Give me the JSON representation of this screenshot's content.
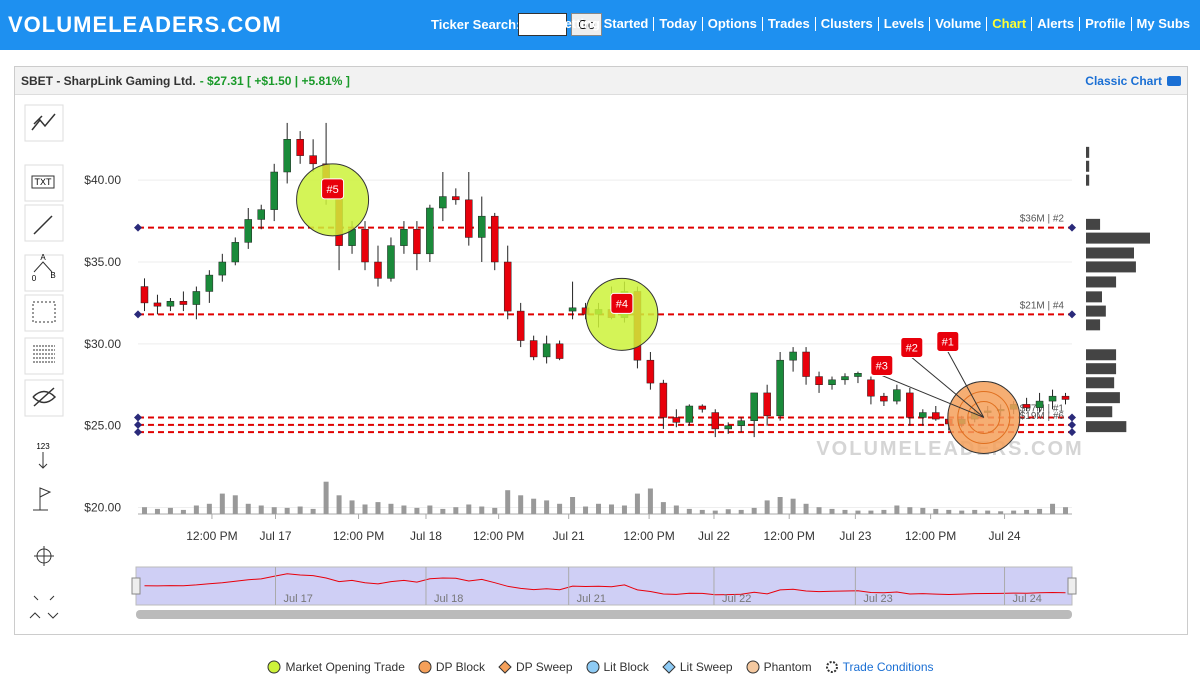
{
  "header": {
    "logo": "VOLUMELEADERS.COM",
    "search_label": "Ticker Search:",
    "go": "Go",
    "nav": [
      "Getting Started",
      "Today",
      "Options",
      "Trades",
      "Clusters",
      "Levels",
      "Volume",
      "Chart",
      "Alerts",
      "Profile",
      "My Subs"
    ],
    "active": "Chart"
  },
  "panel": {
    "title": "SBET - SharpLink Gaming Ltd.",
    "quote": "- $27.31 [ +$1.50 | +5.81% ]",
    "classic": "Classic Chart"
  },
  "toolbar": {
    "text_tool": "TXT",
    "fib_labels": [
      "A",
      "0",
      "B"
    ],
    "number_tool": "123"
  },
  "chart_data": {
    "type": "candlestick",
    "watermark": "VOLUMELEADERS.COM",
    "up_color": "#1a8a3a",
    "down_color": "#e8000b",
    "volume_color": "#999999",
    "grid": true,
    "ylim": [
      19.6,
      44.9
    ],
    "yticks": [
      {
        "value": 20,
        "label": "$20.00"
      },
      {
        "value": 25,
        "label": "$25.00"
      },
      {
        "value": 30,
        "label": "$30.00"
      },
      {
        "value": 35,
        "label": "$35.00"
      },
      {
        "value": 40,
        "label": "$40.00"
      }
    ],
    "xlim": [
      -0.5,
      71.5
    ],
    "xticks": [
      {
        "value": 5.2,
        "label": "12:00 PM"
      },
      {
        "value": 10.1,
        "label": "Jul 17"
      },
      {
        "value": 16.5,
        "label": "12:00 PM"
      },
      {
        "value": 21.7,
        "label": "Jul 18"
      },
      {
        "value": 27.3,
        "label": "12:00 PM"
      },
      {
        "value": 32.7,
        "label": "Jul 21"
      },
      {
        "value": 38.9,
        "label": "12:00 PM"
      },
      {
        "value": 43.9,
        "label": "Jul 22"
      },
      {
        "value": 49.7,
        "label": "12:00 PM"
      },
      {
        "value": 54.8,
        "label": "Jul 23"
      },
      {
        "value": 60.6,
        "label": "12:00 PM"
      },
      {
        "value": 66.3,
        "label": "Jul 24"
      }
    ],
    "open": [
      33.5,
      32.5,
      32.3,
      32.6,
      32.4,
      33.2,
      34.2,
      35.0,
      36.2,
      37.6,
      38.2,
      40.5,
      42.5,
      41.5,
      41.0,
      39.0,
      36.0,
      37.0,
      35.0,
      34.0,
      36.0,
      37.0,
      35.5,
      38.3,
      39,
      38.8,
      36.5,
      37.8,
      35,
      32,
      30.2,
      29.2,
      30,
      32,
      32.2,
      31.8,
      32.1,
      31.6,
      33.2,
      29,
      27.6,
      25.5,
      25.2,
      26.2,
      25.8,
      24.8,
      25,
      25.3,
      27,
      25.6,
      29,
      29.5,
      28,
      27.5,
      27.8,
      28,
      27.8,
      26.8,
      26.5,
      27,
      25.5,
      25.8,
      25.4,
      25.1,
      25.4,
      25.8,
      25.9,
      26,
      26.3,
      26.1,
      26.5,
      26.8
    ],
    "high": [
      34,
      33,
      32.8,
      33.2,
      33.5,
      34.5,
      35.5,
      36.5,
      38.3,
      38.5,
      41,
      43.5,
      43,
      42.5,
      43.5,
      39.5,
      37.5,
      37.5,
      36,
      36.5,
      37.5,
      37.5,
      38.5,
      40.5,
      39.5,
      40.5,
      39,
      38,
      36,
      32.5,
      30.5,
      30.5,
      30.2,
      33.8,
      32.5,
      32.5,
      33.5,
      33.8,
      33.5,
      29.5,
      27.8,
      26,
      26.3,
      26.3,
      26,
      25.2,
      25.5,
      27,
      27.5,
      29.5,
      29.8,
      29.8,
      28.3,
      28,
      28.2,
      28.3,
      28,
      27,
      27.5,
      27.3,
      26,
      26.2,
      25.8,
      25.6,
      26,
      26.2,
      26.3,
      26.5,
      26.7,
      27,
      27.2,
      27
    ],
    "low": [
      32,
      31.8,
      32,
      32,
      31.5,
      32.5,
      33.8,
      34.8,
      35.8,
      37,
      37.5,
      39.8,
      41,
      40.5,
      38.5,
      34.5,
      35.5,
      34.5,
      33.5,
      33.8,
      35.5,
      34.5,
      35,
      37.5,
      38.5,
      36,
      35,
      34.5,
      31.5,
      29.8,
      29,
      28.8,
      29,
      31.5,
      31.5,
      31,
      31.5,
      31.3,
      28.5,
      27.2,
      24.8,
      24.9,
      25,
      25.8,
      24.3,
      24.5,
      24.6,
      24.3,
      25,
      25.3,
      28.3,
      27.5,
      27,
      27.2,
      27.5,
      27.6,
      26.3,
      26.2,
      26.3,
      25,
      25,
      25.3,
      24.7,
      24.9,
      25.2,
      25.5,
      25.6,
      25.7,
      25.9,
      25.8,
      26,
      26.3
    ],
    "close": [
      32.5,
      32.3,
      32.6,
      32.4,
      33.2,
      34.2,
      35.0,
      36.2,
      37.6,
      38.2,
      40.5,
      42.5,
      41.5,
      41.0,
      39.0,
      36.0,
      37.0,
      35.0,
      34.0,
      36.0,
      37.0,
      35.5,
      38.3,
      39,
      38.8,
      36.5,
      37.8,
      35,
      32,
      30.2,
      29.2,
      30,
      29.1,
      32.2,
      31.8,
      32.1,
      31.6,
      33.2,
      29,
      27.6,
      25.5,
      25.2,
      26.2,
      26,
      24.8,
      25,
      25.3,
      27,
      25.6,
      29,
      29.5,
      28,
      27.5,
      27.8,
      28,
      28.2,
      26.8,
      26.5,
      27.2,
      25.5,
      25.8,
      25.4,
      25.1,
      25.4,
      25.8,
      25.9,
      26,
      26.3,
      26.1,
      26.5,
      26.8,
      26.6
    ],
    "volume": [
      20,
      15,
      18,
      12,
      25,
      30,
      60,
      55,
      30,
      25,
      20,
      18,
      22,
      15,
      95,
      55,
      40,
      28,
      35,
      30,
      25,
      18,
      25,
      15,
      20,
      28,
      22,
      18,
      70,
      55,
      45,
      40,
      30,
      50,
      22,
      30,
      28,
      25,
      60,
      75,
      35,
      25,
      15,
      12,
      10,
      14,
      12,
      18,
      40,
      50,
      45,
      30,
      20,
      15,
      12,
      10,
      10,
      12,
      25,
      20,
      18,
      15,
      12,
      10,
      12,
      10,
      8,
      10,
      12,
      15,
      30,
      20
    ],
    "volume_lim": [
      0,
      100
    ],
    "levels": [
      {
        "price": 37.1,
        "label": "$36M | #2"
      },
      {
        "price": 31.8,
        "label": "$21M | #4"
      },
      {
        "price": 25.5,
        "label": "$97M | #1"
      },
      {
        "price": 25.05,
        "label": "$19M | #6"
      },
      {
        "price": 24.6,
        "label": null
      }
    ],
    "level_color": "#e00000",
    "profile": [
      {
        "price": 41.7,
        "value": 5
      },
      {
        "price": 40.85,
        "value": 5
      },
      {
        "price": 40,
        "value": 5
      },
      {
        "price": 37.3,
        "value": 22
      },
      {
        "price": 36.46,
        "value": 100
      },
      {
        "price": 35.55,
        "value": 75
      },
      {
        "price": 34.7,
        "value": 78
      },
      {
        "price": 33.78,
        "value": 47
      },
      {
        "price": 32.87,
        "value": 25
      },
      {
        "price": 32.0,
        "value": 31
      },
      {
        "price": 31.16,
        "value": 22
      },
      {
        "price": 29.33,
        "value": 47
      },
      {
        "price": 28.48,
        "value": 47
      },
      {
        "price": 27.62,
        "value": 44
      },
      {
        "price": 26.71,
        "value": 53
      },
      {
        "price": 25.85,
        "value": 41
      },
      {
        "price": 24.94,
        "value": 63
      }
    ],
    "profile_lim": [
      0,
      100
    ],
    "trades": [
      {
        "labels": [
          "#5"
        ],
        "color": "#cdf23a",
        "x": 14.5,
        "price": 38.8
      },
      {
        "labels": [
          "#4"
        ],
        "color": "#cdf23a",
        "x": 36.8,
        "price": 31.8
      },
      {
        "labels": [
          "#3",
          "#2",
          "#1"
        ],
        "color": "#f5a05a",
        "x": 64.7,
        "price": 25.5
      }
    ],
    "legend": [
      {
        "label": "Market Opening Trade",
        "color": "#cdf23a",
        "shape": "circle"
      },
      {
        "label": "DP Block",
        "color": "#f5a05a",
        "shape": "circle"
      },
      {
        "label": "DP Sweep",
        "color": "#f5a05a",
        "shape": "diamond"
      },
      {
        "label": "Lit Block",
        "color": "#8ecbf5",
        "shape": "circle"
      },
      {
        "label": "Lit Sweep",
        "color": "#8ecbf5",
        "shape": "diamond"
      },
      {
        "label": "Phantom",
        "color": "#f5c9a0",
        "shape": "circle"
      },
      {
        "label": "Trade Conditions",
        "color": "#1a6fd4",
        "shape": "gear"
      }
    ]
  }
}
